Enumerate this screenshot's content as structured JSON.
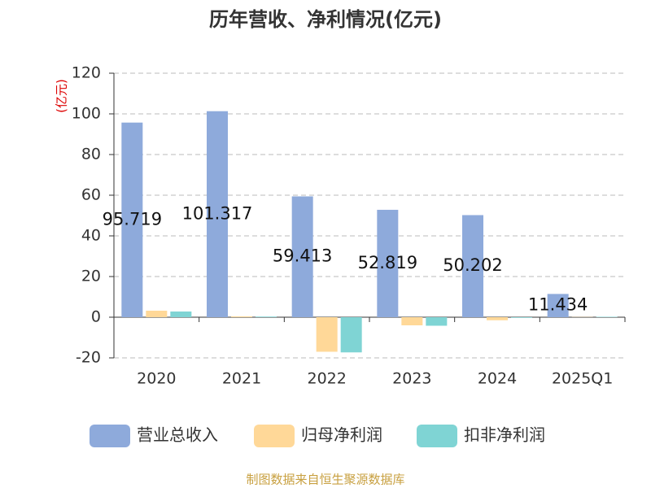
{
  "chart_data": {
    "type": "bar",
    "title": "历年营收、净利情况(亿元)",
    "y_label": "(亿元)",
    "source": "制图数据来自恒生聚源数据库",
    "categories": [
      "2020",
      "2021",
      "2022",
      "2023",
      "2024",
      "2025Q1"
    ],
    "series": [
      {
        "name": "营业总收入",
        "color": "#8eaadb",
        "values": [
          95.719,
          101.317,
          59.413,
          52.819,
          50.202,
          11.434
        ]
      },
      {
        "name": "归母净利润",
        "color": "#ffd898",
        "values": [
          3.2,
          0.4,
          -17,
          -4,
          -1.5,
          0.1
        ]
      },
      {
        "name": "扣非净利润",
        "color": "#7fd4d4",
        "values": [
          2.8,
          0.3,
          -17.3,
          -4.2,
          -0.3,
          0.2
        ]
      }
    ],
    "ylim": [
      -20,
      120
    ],
    "yticks": [
      -20,
      0,
      20,
      40,
      60,
      80,
      100,
      120
    ],
    "grid": true
  }
}
